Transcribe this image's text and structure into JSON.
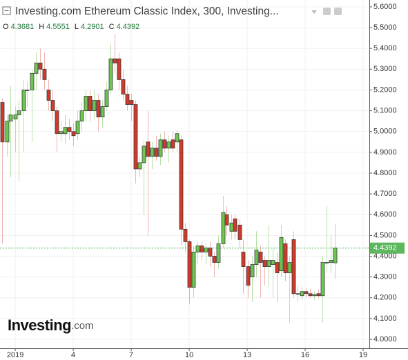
{
  "chart_data": {
    "type": "candlestick",
    "title": "Investing.com Ethereum Classic Index, 300, Investing...",
    "ohlc": [
      {
        "label": "O",
        "value": 4.3681
      },
      {
        "label": "H",
        "value": 4.5551
      },
      {
        "label": "L",
        "value": 4.2901
      },
      {
        "label": "C",
        "value": 4.4392
      }
    ],
    "watermark": {
      "brand": "Investing",
      "suffix": ".com"
    },
    "last_price": 4.4392,
    "up_color": "#6dc64f",
    "down_color": "#d2392b",
    "grid": true,
    "xlim": [
      0.21,
      19.32
    ],
    "xticks": [
      {
        "value": 1,
        "label": "2019"
      },
      4,
      7,
      10,
      13,
      16,
      19
    ],
    "ylim": [
      3.957,
      5.633
    ],
    "yticks": [
      {
        "value": 4.0,
        "label": "4.0000"
      },
      {
        "value": 4.1,
        "label": "4.1000"
      },
      {
        "value": 4.2,
        "label": "4.2000"
      },
      {
        "value": 4.3,
        "label": "4.3000"
      },
      {
        "value": 4.4,
        "label": "4.4000"
      },
      {
        "value": 4.5,
        "label": "4.5000"
      },
      {
        "value": 4.6,
        "label": "4.6000"
      },
      {
        "value": 4.7,
        "label": "4.7000"
      },
      {
        "value": 4.8,
        "label": "4.8000"
      },
      {
        "value": 4.9,
        "label": "4.9000"
      },
      {
        "value": 5.0,
        "label": "5.0000"
      },
      {
        "value": 5.1,
        "label": "5.1000"
      },
      {
        "value": 5.2,
        "label": "5.2000"
      },
      {
        "value": 5.3,
        "label": "5.3000"
      },
      {
        "value": 5.4,
        "label": "5.4000"
      },
      {
        "value": 5.5,
        "label": "5.5000"
      },
      {
        "value": 5.6,
        "label": "5.6000"
      }
    ],
    "x": [
      0.33,
      0.55,
      0.76,
      0.98,
      1.19,
      1.41,
      1.62,
      1.84,
      2.05,
      2.27,
      2.48,
      2.7,
      2.91,
      3.13,
      3.34,
      3.56,
      3.77,
      3.99,
      4.2,
      4.42,
      4.63,
      4.85,
      5.06,
      5.28,
      5.49,
      5.71,
      5.92,
      6.14,
      6.35,
      6.57,
      6.78,
      7.0,
      7.21,
      7.43,
      7.64,
      7.86,
      8.07,
      8.29,
      8.5,
      8.72,
      8.93,
      9.15,
      9.36,
      9.58,
      9.79,
      10.01,
      10.22,
      10.44,
      10.65,
      10.87,
      11.08,
      11.3,
      11.51,
      11.73,
      11.94,
      12.16,
      12.37,
      12.59,
      12.8,
      13.02,
      13.23,
      13.45,
      13.66,
      13.88,
      14.09,
      14.31,
      14.52,
      14.74,
      14.95,
      15.17,
      15.38,
      15.6,
      15.81,
      16.03,
      16.24,
      16.46,
      16.67,
      16.89,
      17.1,
      17.32,
      17.53
    ],
    "open": [
      5.14,
      4.95,
      5.05,
      5.06,
      5.08,
      5.1,
      5.2,
      5.2,
      5.28,
      5.33,
      5.3,
      5.2,
      5.15,
      5.1,
      4.99,
      4.99,
      5.02,
      5.0,
      4.99,
      5.05,
      5.1,
      5.17,
      5.1,
      5.15,
      5.07,
      5.12,
      5.2,
      5.35,
      5.35,
      5.25,
      5.18,
      5.15,
      5.13,
      4.82,
      4.85,
      4.95,
      4.88,
      4.92,
      4.88,
      4.96,
      4.92,
      4.96,
      4.95,
      4.96,
      4.53,
      4.47,
      4.25,
      4.42,
      4.45,
      4.42,
      4.44,
      4.4,
      4.37,
      4.46,
      4.6,
      4.52,
      4.58,
      4.55,
      4.42,
      4.35,
      4.3,
      4.36,
      4.42,
      4.38,
      4.35,
      4.36,
      4.37,
      4.33,
      4.46,
      4.32,
      4.48,
      4.22,
      4.21,
      4.23,
      4.22,
      4.21,
      4.22,
      4.21,
      4.37,
      4.37,
      4.3681
    ],
    "high": [
      5.16,
      5.08,
      5.22,
      5.12,
      5.15,
      5.25,
      5.24,
      5.3,
      5.38,
      5.4,
      5.38,
      5.25,
      5.2,
      5.12,
      5.05,
      5.08,
      5.06,
      5.04,
      5.1,
      5.14,
      5.2,
      5.2,
      5.2,
      5.18,
      5.15,
      5.24,
      5.42,
      5.47,
      5.38,
      5.3,
      5.22,
      5.18,
      5.15,
      4.88,
      4.96,
      5.1,
      4.95,
      4.98,
      4.99,
      5.0,
      4.98,
      5.0,
      5.01,
      4.98,
      4.56,
      4.48,
      4.45,
      4.47,
      4.47,
      4.46,
      4.47,
      4.42,
      4.5,
      4.69,
      4.64,
      4.6,
      4.6,
      4.58,
      4.48,
      4.38,
      4.4,
      4.52,
      4.45,
      4.4,
      4.55,
      4.44,
      4.42,
      4.55,
      4.48,
      4.4,
      4.52,
      4.26,
      4.25,
      4.25,
      4.24,
      4.23,
      4.24,
      4.4,
      4.64,
      4.5,
      4.5551
    ],
    "low": [
      4.46,
      4.88,
      4.78,
      4.9,
      4.76,
      4.9,
      5.12,
      4.95,
      5.2,
      5.25,
      5.2,
      5.1,
      5.05,
      4.9,
      4.95,
      4.94,
      4.96,
      4.93,
      4.96,
      5.0,
      5.05,
      5.05,
      5.06,
      5.0,
      5.02,
      5.1,
      5.18,
      5.28,
      5.2,
      5.15,
      5.1,
      5.05,
      4.75,
      4.78,
      4.6,
      4.5,
      4.82,
      4.86,
      4.84,
      4.9,
      4.85,
      4.9,
      4.9,
      4.45,
      4.42,
      4.17,
      4.2,
      4.36,
      4.38,
      4.36,
      4.35,
      4.3,
      4.34,
      4.44,
      4.5,
      4.48,
      4.48,
      4.44,
      4.22,
      4.2,
      4.18,
      4.3,
      4.2,
      4.26,
      4.25,
      4.2,
      4.18,
      4.3,
      4.28,
      4.08,
      4.2,
      4.18,
      4.19,
      4.2,
      4.2,
      4.19,
      4.2,
      4.08,
      4.32,
      4.32,
      4.2901
    ],
    "close": [
      4.95,
      5.05,
      5.08,
      5.08,
      5.1,
      5.2,
      5.2,
      5.28,
      5.33,
      5.3,
      5.25,
      5.15,
      5.1,
      4.99,
      5.0,
      5.02,
      5.0,
      4.98,
      5.05,
      5.1,
      5.17,
      5.1,
      5.15,
      5.07,
      5.12,
      5.2,
      5.35,
      5.33,
      5.25,
      5.18,
      5.13,
      5.13,
      4.82,
      4.85,
      4.93,
      4.88,
      4.92,
      4.88,
      4.96,
      4.92,
      4.95,
      4.92,
      4.99,
      4.53,
      4.47,
      4.25,
      4.42,
      4.45,
      4.42,
      4.44,
      4.4,
      4.37,
      4.46,
      4.61,
      4.55,
      4.56,
      4.52,
      4.48,
      4.35,
      4.26,
      4.36,
      4.43,
      4.37,
      4.35,
      4.38,
      4.38,
      4.32,
      4.49,
      4.32,
      4.37,
      4.22,
      4.22,
      4.23,
      4.22,
      4.21,
      4.215,
      4.21,
      4.37,
      4.37,
      4.38,
      4.4392
    ]
  }
}
